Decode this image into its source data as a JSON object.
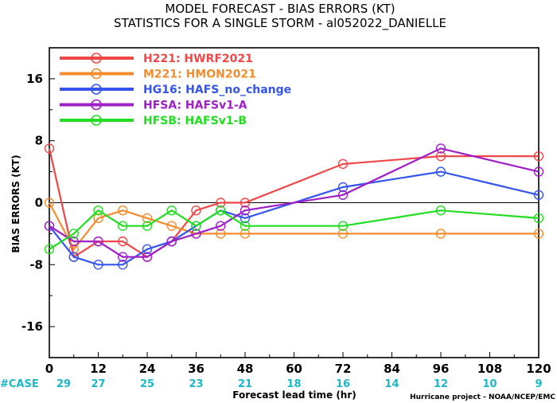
{
  "chart_data": {
    "type": "line",
    "title": "MODEL FORECAST - BIAS ERRORS (KT)",
    "subtitle": "STATISTICS FOR A SINGLE STORM - al052022_DANIELLE",
    "xlabel": "Forecast lead time (hr)",
    "ylabel": "BIAS ERRORS (KT)",
    "xlim": [
      0,
      120
    ],
    "ylim": [
      -20,
      20
    ],
    "x_ticks": [
      "0",
      "12",
      "24",
      "36",
      "48",
      "60",
      "72",
      "84",
      "96",
      "108",
      "120"
    ],
    "y_ticks": [
      "16",
      "8",
      "0",
      "-8",
      "-16"
    ],
    "case_label": "#CASE",
    "case_counts": [
      "29",
      "27",
      "25",
      "23",
      "21",
      "18",
      "16",
      "14",
      "12",
      "10",
      "9"
    ],
    "credit": "Hurricane project - NOAA/NCEP/EMC",
    "zero_line": true,
    "grid": false,
    "legend_position": "top-left",
    "series": [
      {
        "name": "H221: HWRF2021",
        "color": "#f04848",
        "x": [
          0,
          6,
          12,
          18,
          24,
          30,
          36,
          42,
          48,
          72,
          96,
          120
        ],
        "y": [
          7,
          -7,
          -5,
          -5,
          -7,
          -5,
          -1,
          0,
          0,
          5,
          6,
          6
        ]
      },
      {
        "name": "M221: HMON2021",
        "color": "#f58c30",
        "x": [
          0,
          6,
          12,
          18,
          24,
          30,
          36,
          42,
          48,
          72,
          96,
          120
        ],
        "y": [
          0,
          -6,
          -2,
          -1,
          -2,
          -3,
          -4,
          -4,
          -4,
          -4,
          -4,
          -4
        ]
      },
      {
        "name": "HG16: HAFS_no_change",
        "color": "#3355ee",
        "x": [
          0,
          6,
          12,
          18,
          24,
          30,
          36,
          42,
          48,
          72,
          96,
          120
        ],
        "y": [
          -3,
          -7,
          -8,
          -8,
          -6,
          -5,
          -3,
          -1,
          -2,
          2,
          4,
          1
        ]
      },
      {
        "name": "HFSA: HAFSv1-A",
        "color": "#a020c8",
        "x": [
          0,
          6,
          12,
          18,
          24,
          30,
          36,
          42,
          48,
          72,
          96,
          120
        ],
        "y": [
          -3,
          -5,
          -5,
          -7,
          -7,
          -5,
          -4,
          -3,
          -1,
          1,
          7,
          4
        ]
      },
      {
        "name": "HFSB: HAFSv1-B",
        "color": "#22dd22",
        "x": [
          0,
          6,
          12,
          18,
          24,
          30,
          36,
          42,
          48,
          72,
          96,
          120
        ],
        "y": [
          -6,
          -4,
          -1,
          -3,
          -3,
          -1,
          -3,
          -1,
          -3,
          -3,
          -1,
          -2
        ]
      }
    ]
  }
}
